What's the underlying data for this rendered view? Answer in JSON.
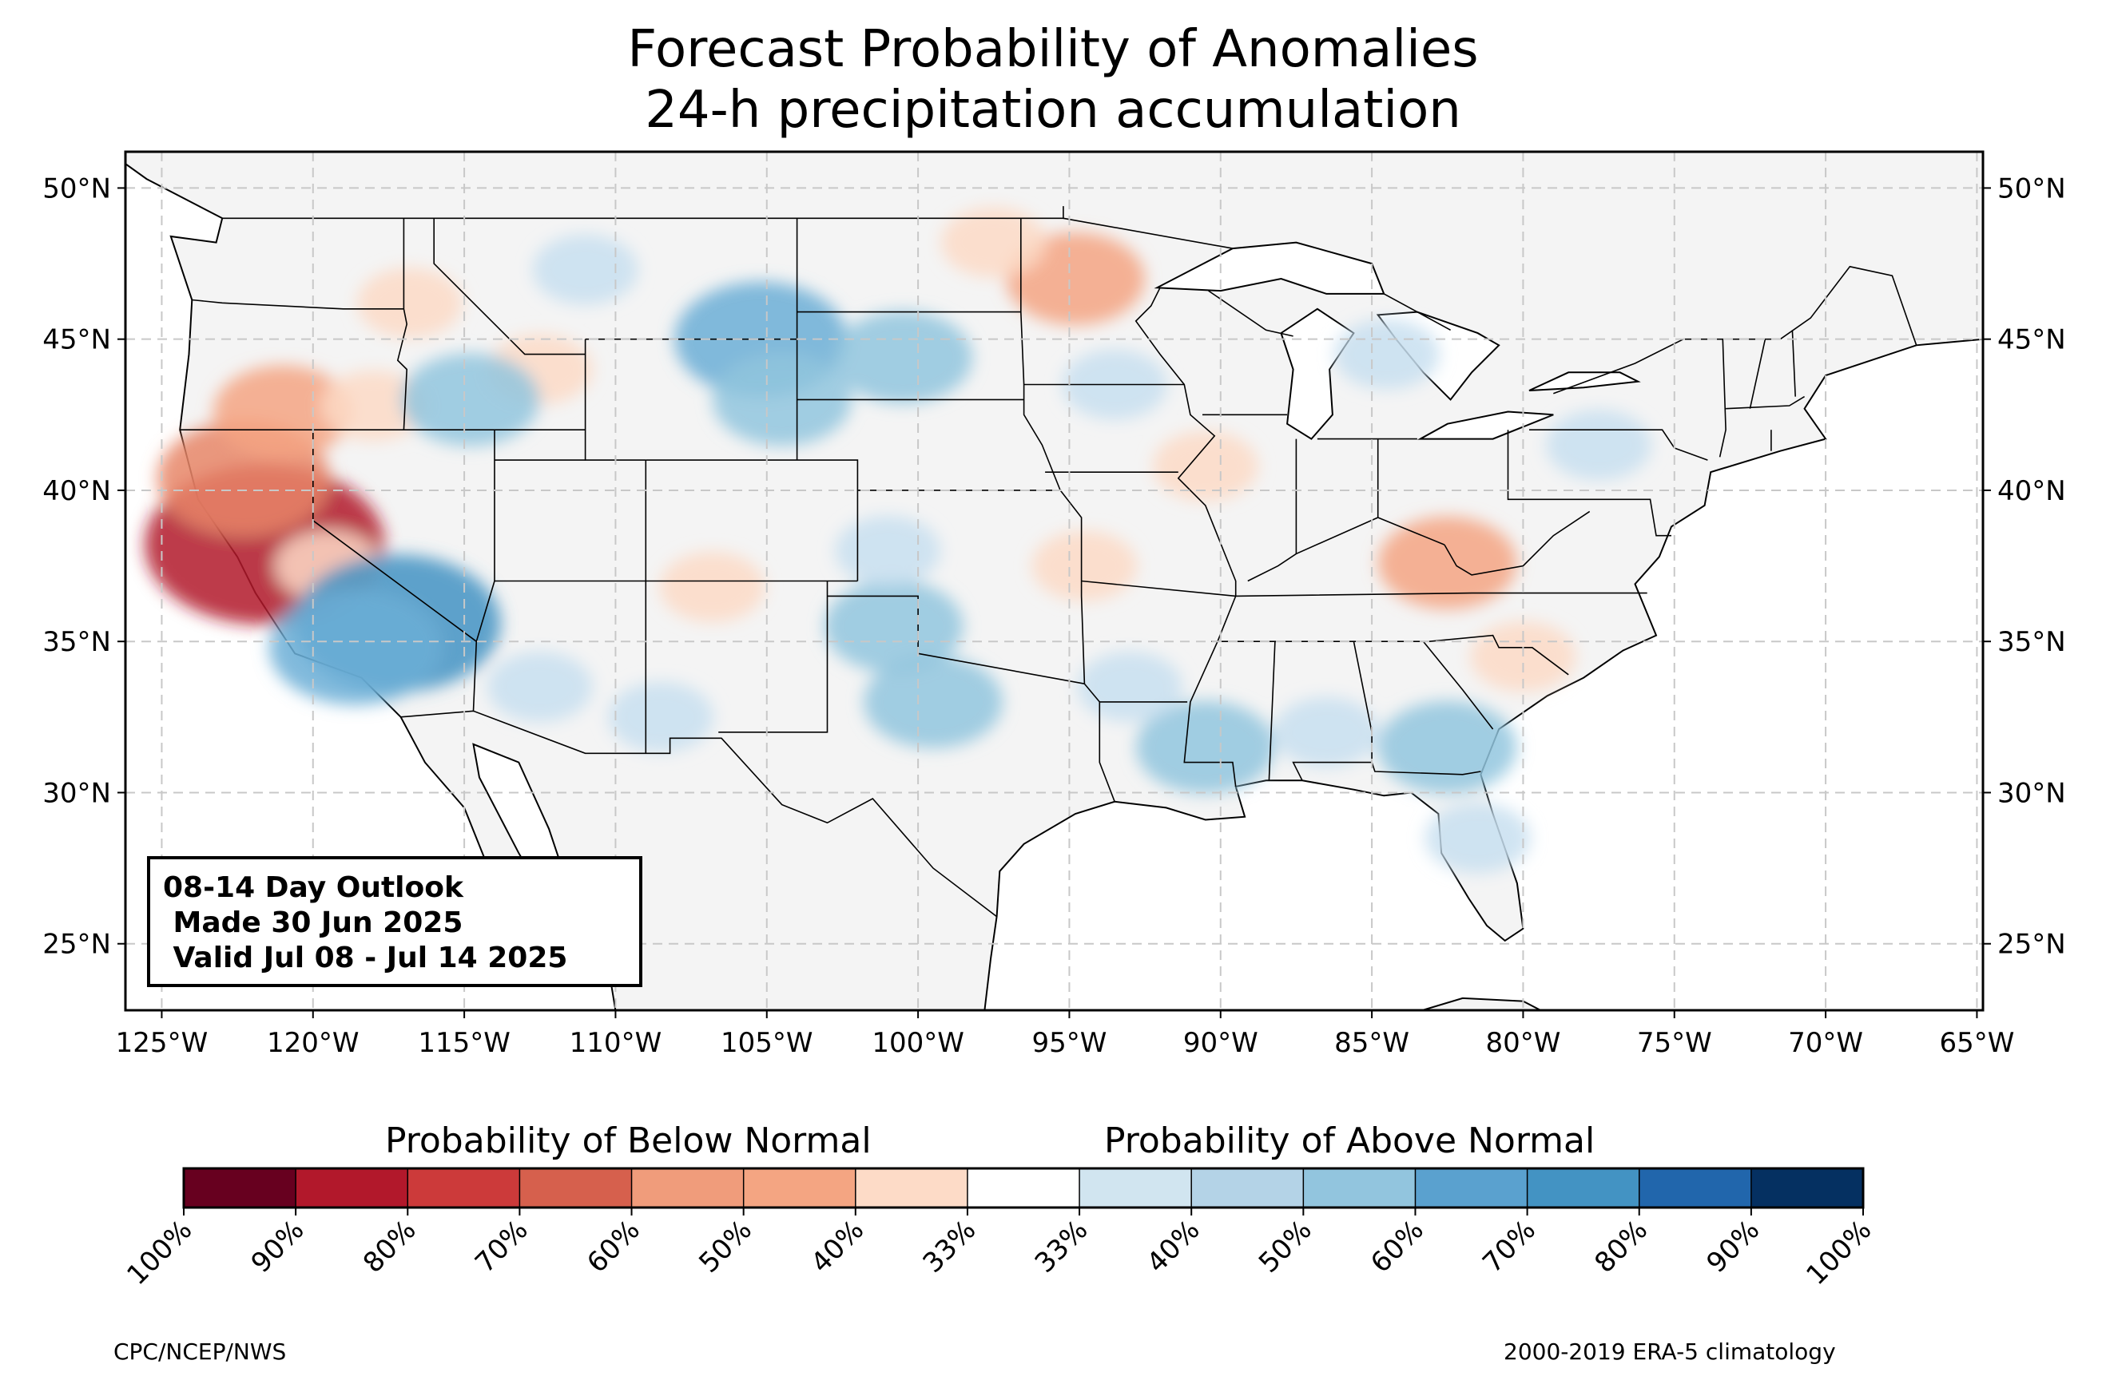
{
  "title": {
    "line1": "Forecast Probability of Anomalies",
    "line2": "24-h precipitation accumulation"
  },
  "map": {
    "lon_ticks": [
      "125°W",
      "120°W",
      "115°W",
      "110°W",
      "105°W",
      "100°W",
      "95°W",
      "90°W",
      "85°W",
      "80°W",
      "75°W",
      "70°W",
      "65°W"
    ],
    "lat_ticks": [
      "50°N",
      "45°N",
      "40°N",
      "35°N",
      "30°N",
      "25°N"
    ],
    "lon_range": [
      -126.2,
      -64.8
    ],
    "lat_range": [
      22.8,
      51.2
    ],
    "gridlines": true,
    "colors": {
      "land": "#f4f4f4",
      "ocean": "#ffffff",
      "border": "#000000",
      "county": "#8c8c8c",
      "grid": "#c8c8c8"
    }
  },
  "outlook_box": {
    "line1": "08-14 Day Outlook",
    "line2": " Made 30 Jun 2025",
    "line3": " Valid Jul 08 - Jul 14 2025"
  },
  "colorbar": {
    "below_label": "Probability of Below Normal",
    "above_label": "Probability of Above Normal",
    "tick_labels": [
      "100%",
      "90%",
      "80%",
      "70%",
      "60%",
      "50%",
      "40%",
      "33%",
      "33%",
      "40%",
      "50%",
      "60%",
      "70%",
      "80%",
      "90%",
      "100%"
    ],
    "colors": [
      "#67001f",
      "#b2182b",
      "#cc3a3a",
      "#d6604d",
      "#f09c7b",
      "#f4a582",
      "#fddbc7",
      "#ffffff",
      "#d1e5f0",
      "#b4d3e7",
      "#92c5de",
      "#5aa1cf",
      "#4393c3",
      "#2166ac",
      "#053061"
    ]
  },
  "footer": {
    "left": "CPC/NCEP/NWS",
    "right": "2000-2019 ERA-5 climatology"
  },
  "anomalies": [
    {
      "lon": -121.6,
      "lat": 38.2,
      "cat": "below",
      "level": 5
    },
    {
      "lon": -122.3,
      "lat": 40.4,
      "cat": "below",
      "level": 3
    },
    {
      "lon": -121.0,
      "lat": 42.6,
      "cat": "below",
      "level": 2
    },
    {
      "lon": -118.0,
      "lat": 42.8,
      "cat": "below",
      "level": 1
    },
    {
      "lon": -119.5,
      "lat": 37.5,
      "cat": "below",
      "level": 1
    },
    {
      "lon": -116.8,
      "lat": 46.2,
      "cat": "below",
      "level": 1
    },
    {
      "lon": -112.5,
      "lat": 44.0,
      "cat": "below",
      "level": 1
    },
    {
      "lon": -106.8,
      "lat": 36.8,
      "cat": "below",
      "level": 1
    },
    {
      "lon": -94.8,
      "lat": 47.0,
      "cat": "below",
      "level": 2
    },
    {
      "lon": -97.5,
      "lat": 48.2,
      "cat": "below",
      "level": 1
    },
    {
      "lon": -82.5,
      "lat": 37.6,
      "cat": "below",
      "level": 2
    },
    {
      "lon": -94.5,
      "lat": 37.5,
      "cat": "below",
      "level": 1
    },
    {
      "lon": -90.5,
      "lat": 40.8,
      "cat": "below",
      "level": 1
    },
    {
      "lon": -80.0,
      "lat": 34.5,
      "cat": "below",
      "level": 1
    },
    {
      "lon": -117.2,
      "lat": 35.6,
      "cat": "above",
      "level": 4
    },
    {
      "lon": -118.6,
      "lat": 34.8,
      "cat": "above",
      "level": 3
    },
    {
      "lon": -105.2,
      "lat": 45.0,
      "cat": "above",
      "level": 3
    },
    {
      "lon": -104.5,
      "lat": 43.0,
      "cat": "above",
      "level": 2
    },
    {
      "lon": -100.5,
      "lat": 44.4,
      "cat": "above",
      "level": 2
    },
    {
      "lon": -114.8,
      "lat": 43.0,
      "cat": "above",
      "level": 2
    },
    {
      "lon": -100.8,
      "lat": 35.5,
      "cat": "above",
      "level": 2
    },
    {
      "lon": -99.5,
      "lat": 33.0,
      "cat": "above",
      "level": 2
    },
    {
      "lon": -101.0,
      "lat": 38.0,
      "cat": "above",
      "level": 1
    },
    {
      "lon": -112.5,
      "lat": 33.5,
      "cat": "above",
      "level": 1
    },
    {
      "lon": -108.5,
      "lat": 32.5,
      "cat": "above",
      "level": 1
    },
    {
      "lon": -90.5,
      "lat": 31.5,
      "cat": "above",
      "level": 2
    },
    {
      "lon": -82.5,
      "lat": 31.5,
      "cat": "above",
      "level": 2
    },
    {
      "lon": -81.5,
      "lat": 28.5,
      "cat": "above",
      "level": 1
    },
    {
      "lon": -86.5,
      "lat": 32.0,
      "cat": "above",
      "level": 1
    },
    {
      "lon": -93.0,
      "lat": 33.5,
      "cat": "above",
      "level": 1
    },
    {
      "lon": -111.0,
      "lat": 47.3,
      "cat": "above",
      "level": 1
    },
    {
      "lon": -93.5,
      "lat": 43.5,
      "cat": "above",
      "level": 1
    },
    {
      "lon": -77.5,
      "lat": 41.5,
      "cat": "above",
      "level": 1
    },
    {
      "lon": -84.5,
      "lat": 44.5,
      "cat": "above",
      "level": 1
    }
  ]
}
